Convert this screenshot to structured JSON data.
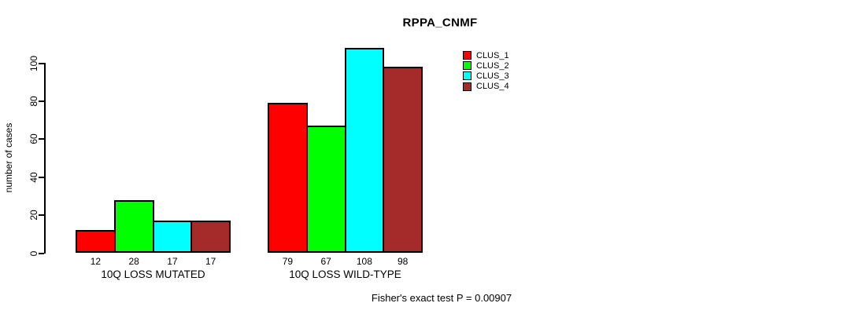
{
  "chart_data": {
    "type": "bar",
    "title": "RPPA_CNMF",
    "ylabel": "number of cases",
    "xlabel": "",
    "categories": [
      "10Q LOSS MUTATED",
      "10Q LOSS WILD-TYPE"
    ],
    "series": [
      {
        "name": "CLUS_1",
        "color": "#FF0000",
        "values": [
          12,
          79
        ]
      },
      {
        "name": "CLUS_2",
        "color": "#00FF00",
        "values": [
          28,
          67
        ]
      },
      {
        "name": "CLUS_3",
        "color": "#00FFFF",
        "values": [
          17,
          108
        ]
      },
      {
        "name": "CLUS_4",
        "color": "#A52A2A",
        "values": [
          17,
          98
        ]
      }
    ],
    "yticks": [
      0,
      20,
      40,
      60,
      80,
      100
    ],
    "ylim": [
      0,
      110
    ],
    "grid": false,
    "bar_borders": "#000000",
    "legend_position": "top-right",
    "bar_value_labels_shown": true,
    "annotation": "Fisher's exact test P = 0.00907"
  }
}
